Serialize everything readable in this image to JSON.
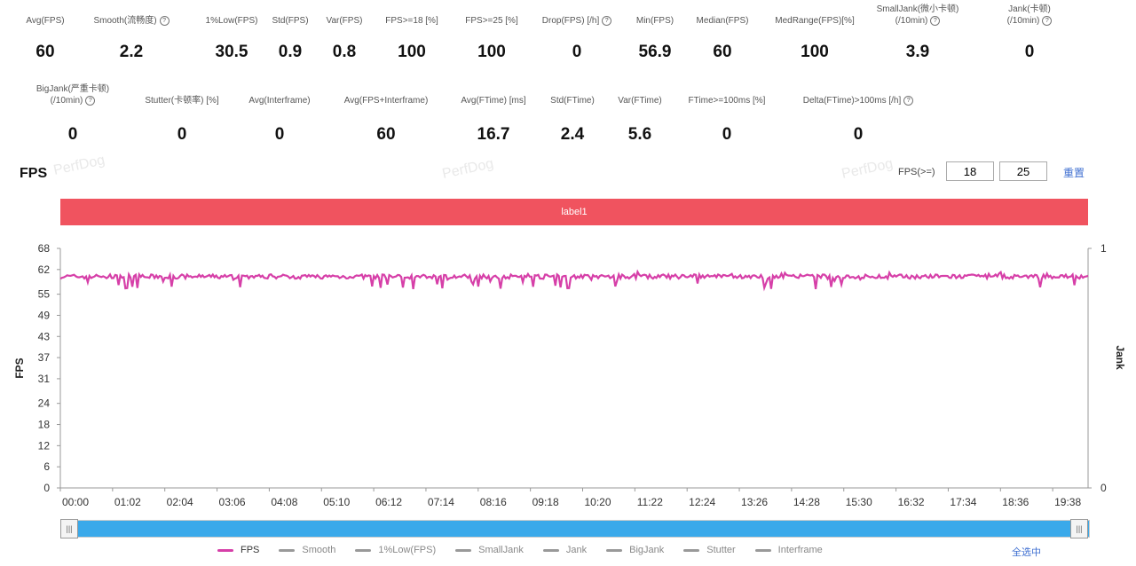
{
  "stats_row1": [
    {
      "label": "Avg(FPS)",
      "value": "60",
      "info": false
    },
    {
      "label": "Smooth(流畅度)",
      "value": "2.2",
      "info": true
    },
    {
      "label": "1%Low(FPS)",
      "value": "30.5",
      "info": false
    },
    {
      "label": "Std(FPS)",
      "value": "0.9",
      "info": false
    },
    {
      "label": "Var(FPS)",
      "value": "0.8",
      "info": false
    },
    {
      "label": "FPS>=18 [%]",
      "value": "100",
      "info": false
    },
    {
      "label": "FPS>=25 [%]",
      "value": "100",
      "info": false
    },
    {
      "label": "Drop(FPS) [/h]",
      "value": "0",
      "info": true
    },
    {
      "label": "Min(FPS)",
      "value": "56.9",
      "info": false
    },
    {
      "label": "Median(FPS)",
      "value": "60",
      "info": false
    },
    {
      "label": "MedRange(FPS)[%]",
      "value": "100",
      "info": false
    },
    {
      "label": "SmallJank(微小卡顿)",
      "label2": "(/10min)",
      "value": "3.9",
      "info": true
    },
    {
      "label": "Jank(卡顿)",
      "label2": "(/10min)",
      "value": "0",
      "info": true
    }
  ],
  "stats_row2": [
    {
      "label": "BigJank(严重卡顿)",
      "label2": "(/10min)",
      "value": "0",
      "info": true
    },
    {
      "label": "Stutter(卡顿率) [%]",
      "value": "0",
      "info": false
    },
    {
      "label": "Avg(Interframe)",
      "value": "0",
      "info": false
    },
    {
      "label": "Avg(FPS+Interframe)",
      "value": "60",
      "info": false
    },
    {
      "label": "Avg(FTime) [ms]",
      "value": "16.7",
      "info": false
    },
    {
      "label": "Std(FTime)",
      "value": "2.4",
      "info": false
    },
    {
      "label": "Var(FTime)",
      "value": "5.6",
      "info": false
    },
    {
      "label": "FTime>=100ms [%]",
      "value": "0",
      "info": false
    },
    {
      "label": "Delta(FTime)>100ms [/h]",
      "value": "0",
      "info": true
    }
  ],
  "watermark": "PerfDog",
  "chart_section": {
    "title": "FPS",
    "threshold_label": "FPS(>=)",
    "threshold1": "18",
    "threshold2": "25",
    "reset_label": "重置",
    "label_bar": "label1",
    "select_all": "全选中"
  },
  "legend": [
    {
      "name": "FPS",
      "active": true
    },
    {
      "name": "Smooth",
      "active": false
    },
    {
      "name": "1%Low(FPS)",
      "active": false
    },
    {
      "name": "SmallJank",
      "active": false
    },
    {
      "name": "Jank",
      "active": false
    },
    {
      "name": "BigJank",
      "active": false
    },
    {
      "name": "Stutter",
      "active": false
    },
    {
      "name": "Interframe",
      "active": false
    }
  ],
  "slider": {
    "left_glyph": "|||",
    "right_glyph": "|||"
  },
  "colors": {
    "fps_line": "#d63fa8",
    "label_bar": "#f0535f",
    "slider": "#3aa9ea",
    "link": "#3f6fd1"
  },
  "chart_data": {
    "type": "line",
    "ylabel": "FPS",
    "y2label": "Jank",
    "yticks": [
      "0",
      "6",
      "12",
      "18",
      "24",
      "31",
      "37",
      "43",
      "49",
      "55",
      "62",
      "68"
    ],
    "ylim": [
      0,
      68
    ],
    "y2ticks": [
      "0",
      "1"
    ],
    "xticks": [
      "00:00",
      "01:02",
      "02:04",
      "03:06",
      "04:08",
      "05:10",
      "06:12",
      "07:14",
      "08:16",
      "09:18",
      "10:20",
      "11:22",
      "12:24",
      "13:26",
      "14:28",
      "15:30",
      "16:32",
      "17:34",
      "18:36",
      "19:38"
    ],
    "xlim_seconds": [
      0,
      1220
    ],
    "series": [
      {
        "name": "FPS",
        "description": "Nearly constant around 60 FPS with small dips (min 56.9)",
        "baseline": 60,
        "min": 56.9
      }
    ]
  }
}
